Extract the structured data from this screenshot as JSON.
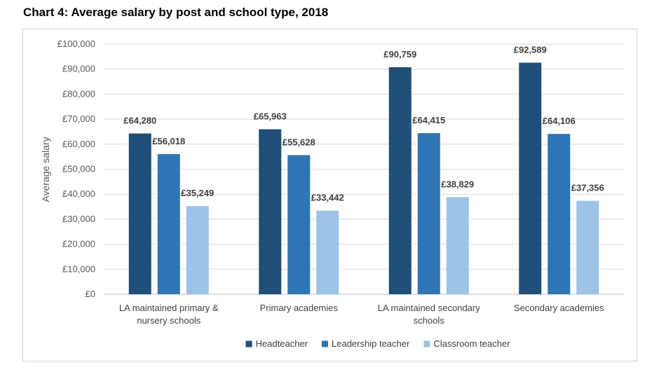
{
  "chart_data": {
    "type": "bar",
    "title": "Chart 4: Average salary by post and school type, 2018",
    "ylabel": "Average salary",
    "xlabel": "",
    "ylim": [
      0,
      100000
    ],
    "y_ticks": [
      "£0",
      "£10,000",
      "£20,000",
      "£30,000",
      "£40,000",
      "£50,000",
      "£60,000",
      "£70,000",
      "£80,000",
      "£90,000",
      "£100,000"
    ],
    "categories": [
      [
        "LA maintained primary &",
        "nursery schools"
      ],
      [
        "Primary academies"
      ],
      [
        "LA maintained secondary",
        "schools"
      ],
      [
        "Secondary academies"
      ]
    ],
    "series": [
      {
        "name": "Headteacher",
        "color": "#1f4e79",
        "values": [
          64280,
          65963,
          90759,
          92589
        ],
        "labels": [
          "£64,280",
          "£65,963",
          "£90,759",
          "£92,589"
        ]
      },
      {
        "name": "Leadership teacher",
        "color": "#2e75b6",
        "values": [
          56018,
          55628,
          64415,
          64106
        ],
        "labels": [
          "£56,018",
          "£55,628",
          "£64,415",
          "£64,106"
        ]
      },
      {
        "name": "Classroom teacher",
        "color": "#9dc3e6",
        "values": [
          35249,
          33442,
          38829,
          37356
        ],
        "labels": [
          "£35,249",
          "£33,442",
          "£38,829",
          "£37,356"
        ]
      }
    ],
    "grid": true,
    "legend_position": "bottom"
  }
}
